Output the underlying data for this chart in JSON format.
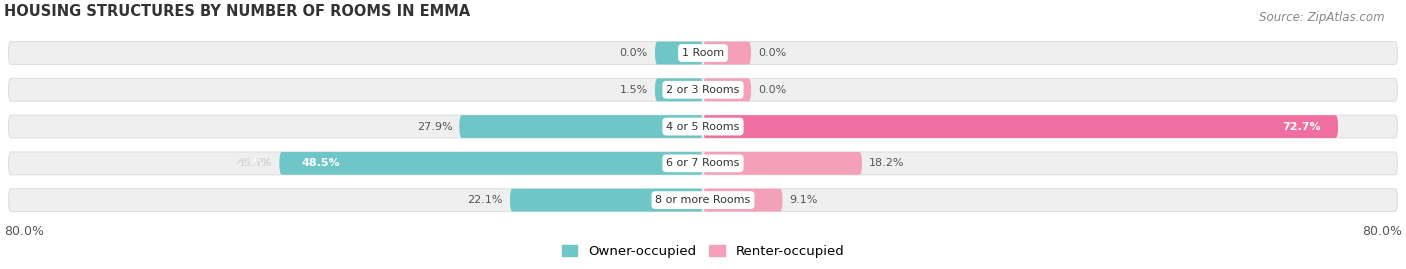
{
  "title": "HOUSING STRUCTURES BY NUMBER OF ROOMS IN EMMA",
  "source": "Source: ZipAtlas.com",
  "categories": [
    "1 Room",
    "2 or 3 Rooms",
    "4 or 5 Rooms",
    "6 or 7 Rooms",
    "8 or more Rooms"
  ],
  "owner_values": [
    0.0,
    1.5,
    27.9,
    48.5,
    22.1
  ],
  "renter_values": [
    0.0,
    0.0,
    72.7,
    18.2,
    9.1
  ],
  "owner_color": "#6EC6C6",
  "renter_color": "#F4A0B8",
  "renter_color_strong": "#EE6FA0",
  "renter_strong_threshold": 50.0,
  "bar_bg_color": "#EFEFEF",
  "bar_bg_shadow_color": "#DEDEDE",
  "xlim_left": -80.0,
  "xlim_right": 80.0,
  "left_label": "80.0%",
  "right_label": "80.0%",
  "title_fontsize": 10.5,
  "source_fontsize": 8.5,
  "legend_fontsize": 9.5,
  "bar_height": 0.62,
  "min_stub": 5.5,
  "label_color_outside": "#555555",
  "label_color_inside": "#ffffff",
  "figsize": [
    14.06,
    2.69
  ],
  "dpi": 100
}
